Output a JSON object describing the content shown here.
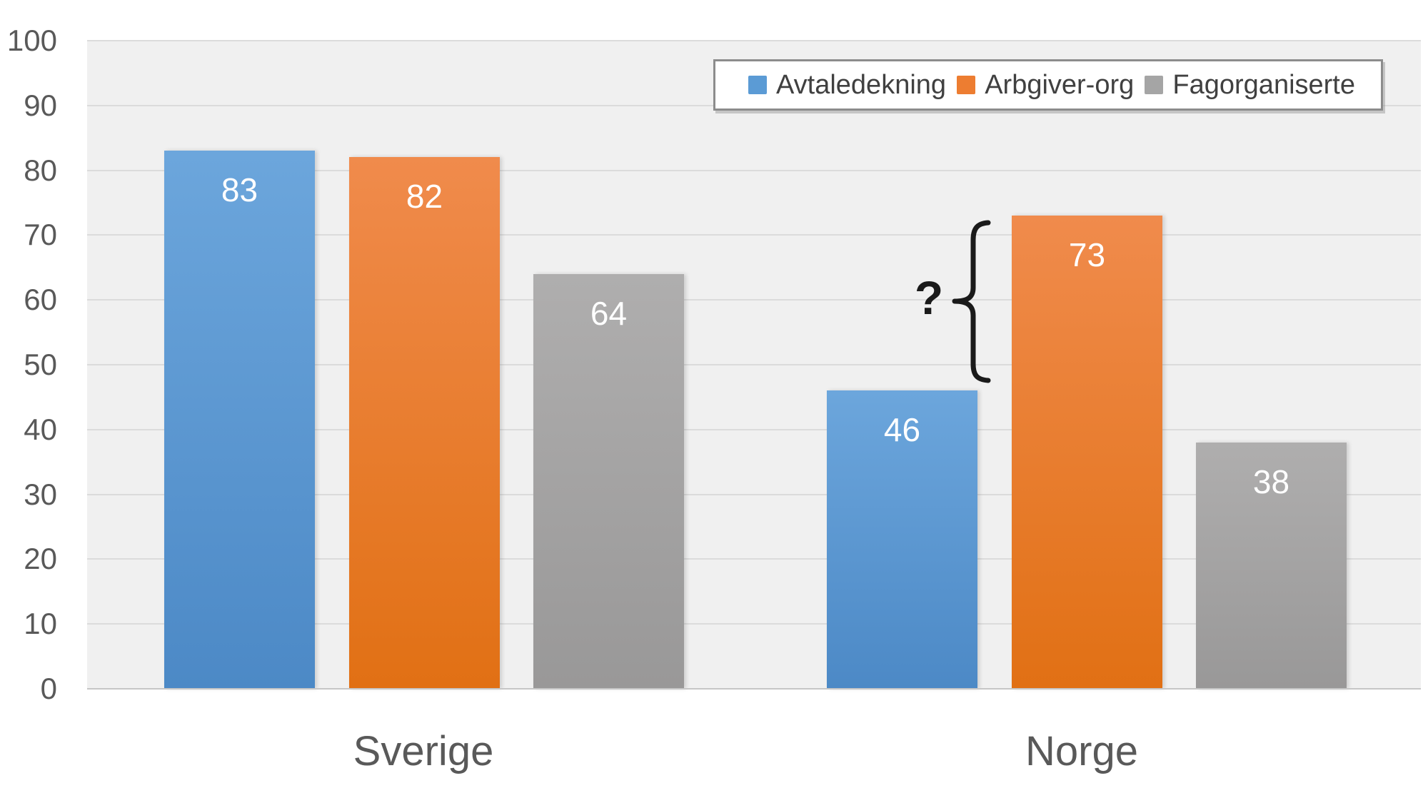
{
  "chart_data": {
    "type": "bar",
    "title": "",
    "categories": [
      "Sverige",
      "Norge"
    ],
    "series": [
      {
        "name": "Avtaledekning",
        "values": [
          83,
          46
        ],
        "color": "#5B9BD5",
        "gradient": [
          "#6CA6DC",
          "#4C89C6"
        ]
      },
      {
        "name": "Arbgiver-org",
        "values": [
          82,
          73
        ],
        "color": "#ED7D31",
        "gradient": [
          "#F08B4C",
          "#E17014"
        ]
      },
      {
        "name": "Fagorganiserte",
        "values": [
          64,
          38
        ],
        "color": "#A5A5A5",
        "gradient": [
          "#AFAEAE",
          "#999898"
        ]
      }
    ],
    "ylim": [
      0,
      100
    ],
    "yticks": [
      0,
      10,
      20,
      30,
      40,
      50,
      60,
      70,
      80,
      90,
      100
    ],
    "grid": true,
    "legend_position": "top-right",
    "annotations": [
      {
        "type": "brace-question",
        "text": "?",
        "category": "Norge",
        "from_series": "Avtaledekning",
        "to_series": "Arbgiver-org"
      }
    ]
  },
  "legend": {
    "items": [
      {
        "label": "Avtaledekning",
        "color": "#5B9BD5"
      },
      {
        "label": "Arbgiver-org",
        "color": "#ED7D31"
      },
      {
        "label": "Fagorganiserte",
        "color": "#A5A5A5"
      }
    ]
  },
  "annotation": {
    "question_mark": "?"
  },
  "colors": {
    "plot_bg": "#F0F0F0",
    "gridline": "#DBDBDB",
    "axis_line": "#C6C6C6",
    "tick_label": "#595959",
    "category_label": "#595959",
    "data_label": "#FFFFFF",
    "legend_text": "#404040",
    "legend_border": "#8C8C8C",
    "annotation": "#1A1A1A"
  }
}
